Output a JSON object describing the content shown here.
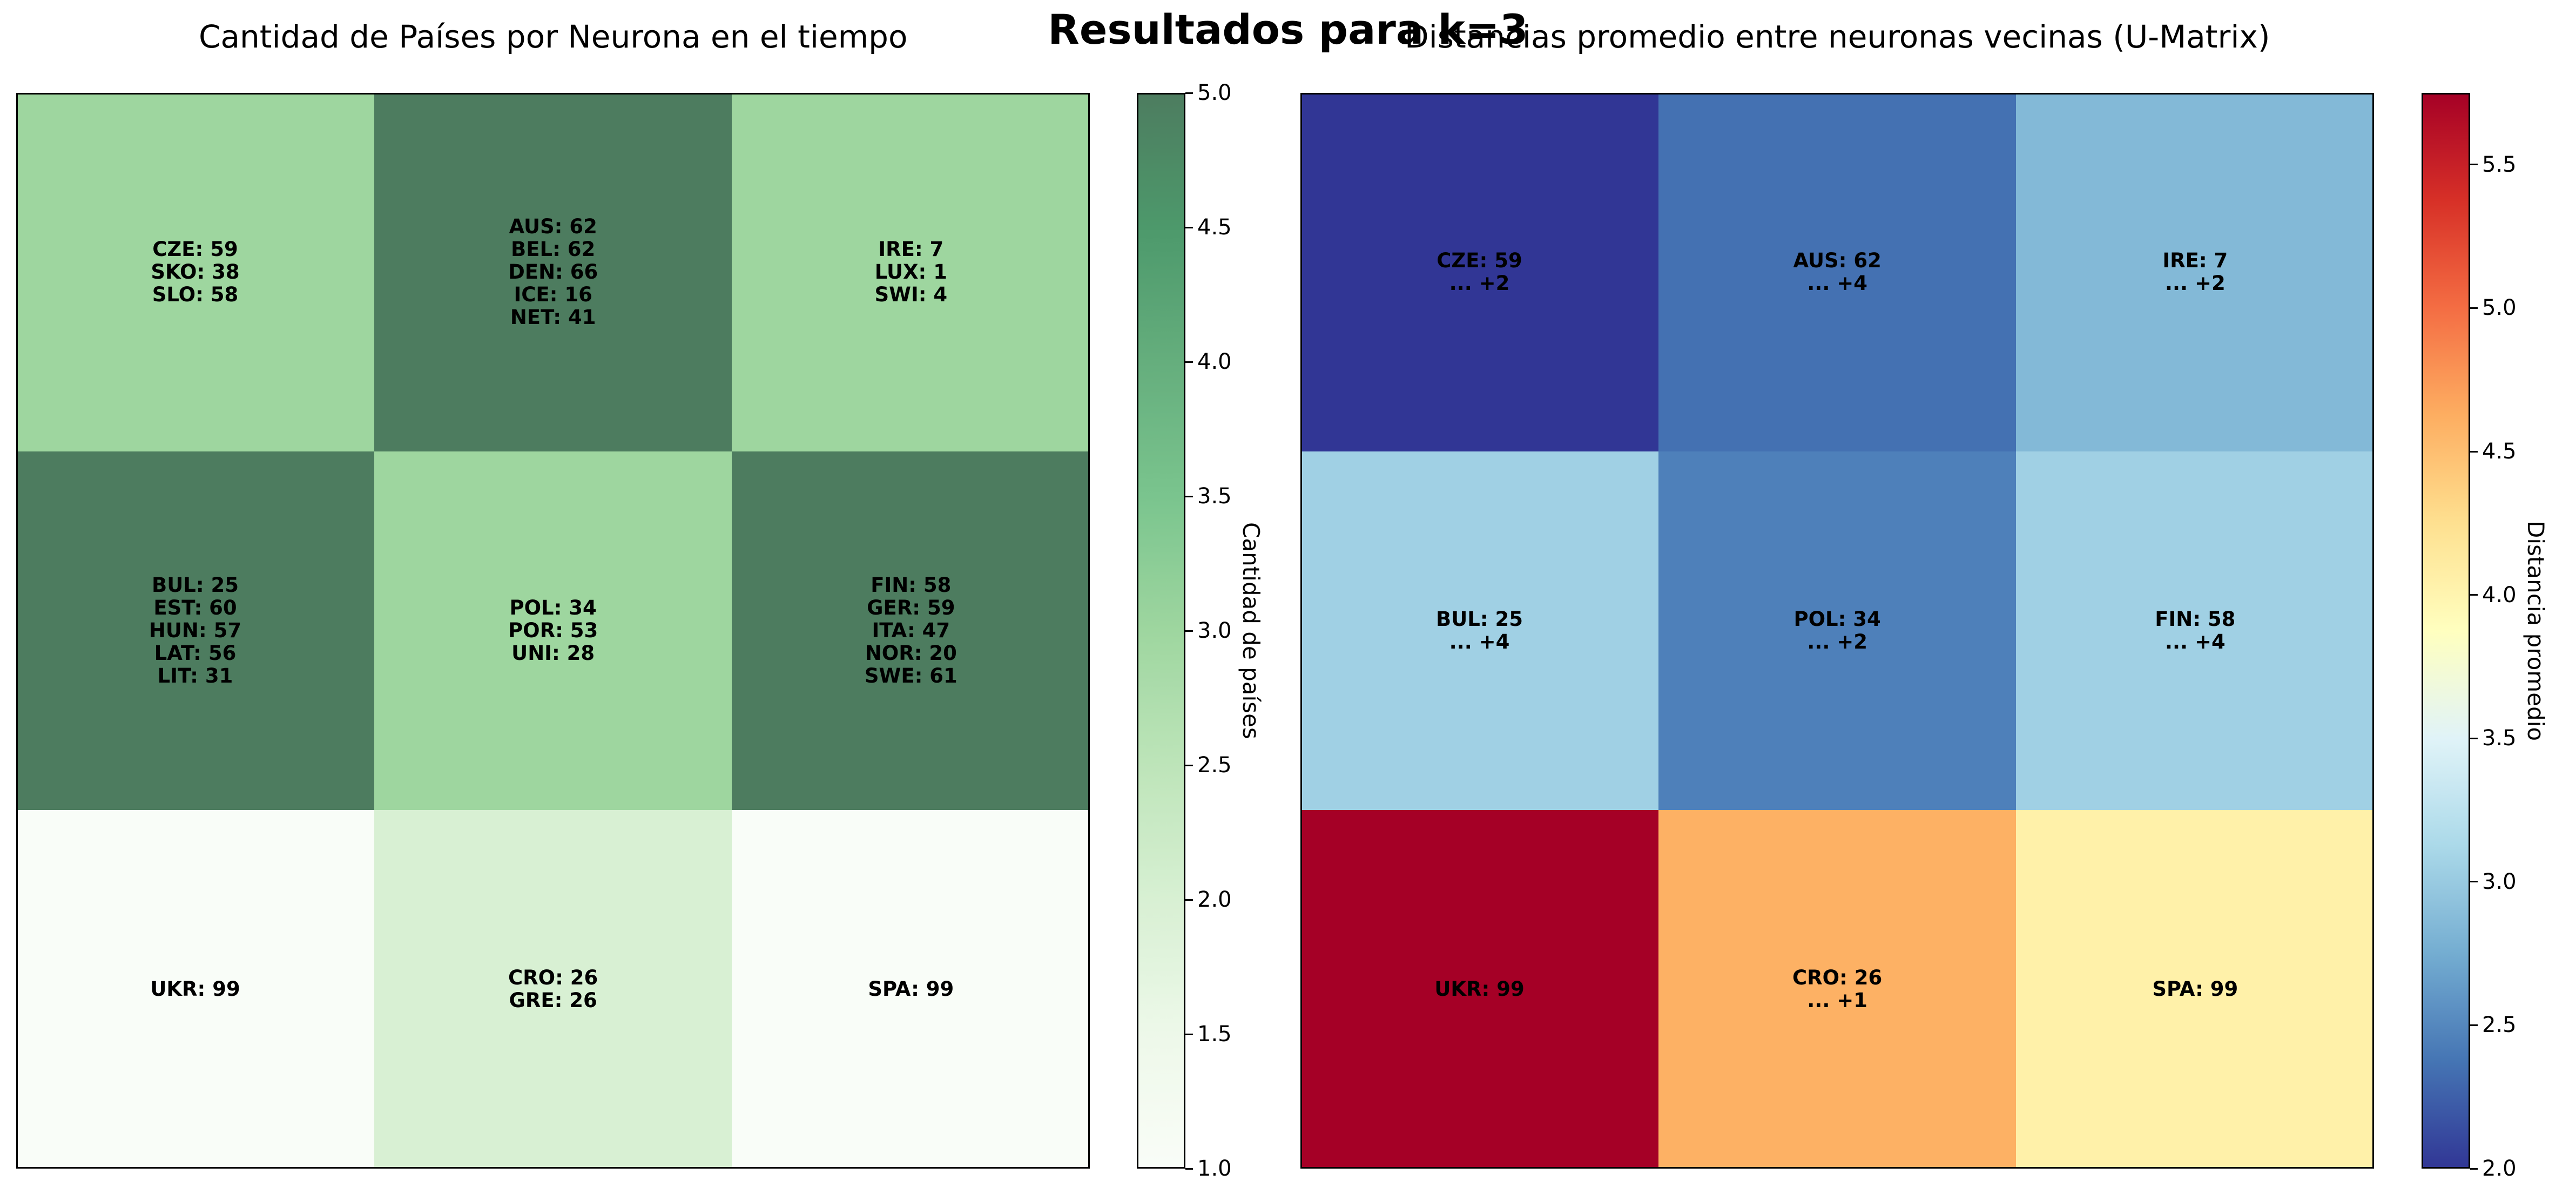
{
  "suptitle": "Resultados para k=3",
  "chart_data": [
    {
      "type": "heatmap",
      "title": "Cantidad de Países por Neurona en el tiempo",
      "rows": 3,
      "cols": 3,
      "values": [
        [
          3,
          5,
          3
        ],
        [
          5,
          3,
          5
        ],
        [
          1,
          2,
          1
        ]
      ],
      "cell_labels": [
        [
          "CZE: 59\nSKO: 38\nSLO: 58",
          "AUS: 62\nBEL: 62\nDEN: 66\nICE: 16\nNET: 41",
          "IRE: 7\nLUX: 1\nSWI: 4"
        ],
        [
          "BUL: 25\nEST: 60\nHUN: 57\nLAT: 56\nLIT: 31",
          "POL: 34\nPOR: 53\nUNI: 28",
          "FIN: 58\nGER: 59\nITA: 47\nNOR: 20\nSWE: 61"
        ],
        [
          "UKR: 99",
          "CRO: 26\nGRE: 26",
          "SPA: 99"
        ]
      ],
      "colormap": "Greens",
      "alpha": 0.7,
      "colorbar": {
        "label": "Cantidad de países",
        "range": [
          1.0,
          5.0
        ],
        "ticks": [
          1.0,
          1.5,
          2.0,
          2.5,
          3.0,
          3.5,
          4.0,
          4.5,
          5.0
        ],
        "tick_labels": [
          "1.0",
          "1.5",
          "2.0",
          "2.5",
          "3.0",
          "3.5",
          "4.0",
          "4.5",
          "5.0"
        ]
      }
    },
    {
      "type": "heatmap",
      "title": "Distancias promedio entre neuronas vecinas (U-Matrix)",
      "rows": 3,
      "cols": 3,
      "values": [
        [
          2.0,
          2.35,
          2.85
        ],
        [
          3.05,
          2.45,
          3.05
        ],
        [
          5.75,
          4.6,
          4.05
        ]
      ],
      "cell_labels": [
        [
          "CZE: 59\n... +2",
          "AUS: 62\n... +4",
          "IRE: 7\n... +2"
        ],
        [
          "BUL: 25\n... +4",
          "POL: 34\n... +2",
          "FIN: 58\n... +4"
        ],
        [
          "UKR: 99",
          "CRO: 26\n... +1",
          "SPA: 99"
        ]
      ],
      "colormap": "RdYlBu_r",
      "colorbar": {
        "label": "Distancia promedio",
        "range": [
          2.0,
          5.75
        ],
        "ticks": [
          2.0,
          2.5,
          3.0,
          3.5,
          4.0,
          4.5,
          5.0,
          5.5
        ],
        "tick_labels": [
          "2.0",
          "2.5",
          "3.0",
          "3.5",
          "4.0",
          "4.5",
          "5.0",
          "5.5"
        ]
      }
    }
  ]
}
